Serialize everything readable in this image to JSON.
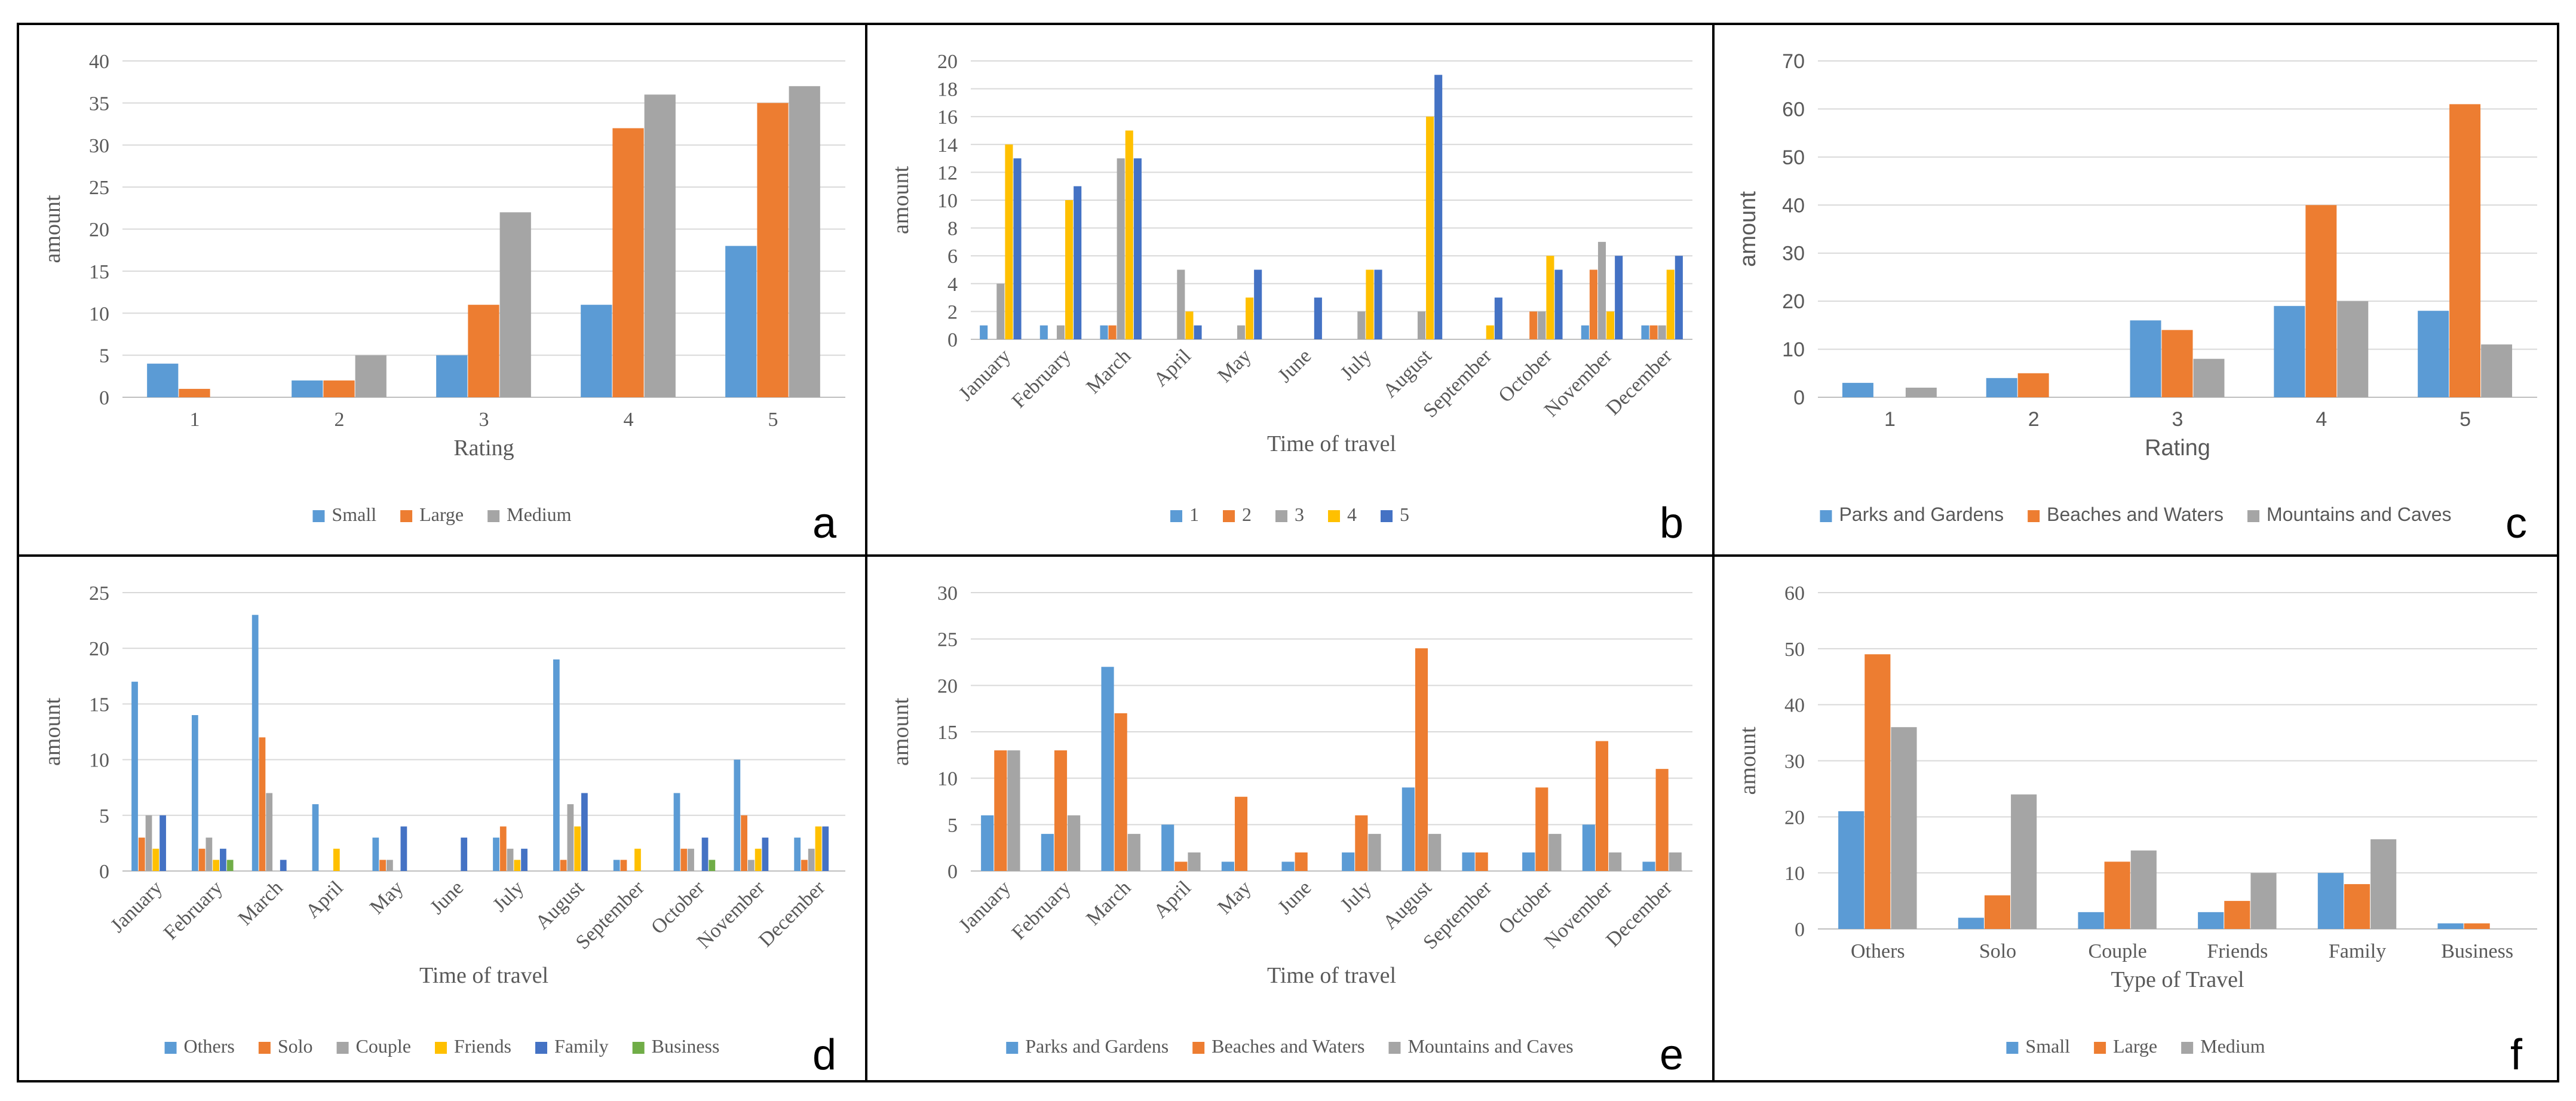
{
  "colors": {
    "blue": "#5B9BD5",
    "orange": "#ED7D31",
    "gray": "#A5A5A5",
    "yellow": "#FFC000",
    "darkblue": "#4472C4",
    "green": "#70AD47",
    "gridline": "#D9D9D9",
    "border": "#000000",
    "text": "#595959"
  },
  "chart_data": [
    {
      "panel": "a",
      "type": "bar",
      "title": "",
      "xlabel": "Rating",
      "ylabel": "amount",
      "ylim": [
        0,
        40
      ],
      "ytick_step": 5,
      "grid": true,
      "legend": "bottom",
      "legend_font": "serif",
      "categories": [
        "1",
        "2",
        "3",
        "4",
        "5"
      ],
      "rotate_labels": false,
      "series": [
        {
          "name": "Small",
          "color": "blue",
          "values": [
            4,
            2,
            5,
            11,
            18
          ]
        },
        {
          "name": "Large",
          "color": "orange",
          "values": [
            1,
            2,
            11,
            32,
            35
          ]
        },
        {
          "name": "Medium",
          "color": "gray",
          "values": [
            0,
            5,
            22,
            36,
            37
          ]
        }
      ]
    },
    {
      "panel": "b",
      "type": "bar",
      "title": "",
      "xlabel": "Time of travel",
      "ylabel": "amount",
      "ylim": [
        0,
        20
      ],
      "ytick_step": 2,
      "grid": true,
      "legend": "bottom",
      "legend_font": "serif",
      "categories": [
        "January",
        "February",
        "March",
        "April",
        "May",
        "June",
        "July",
        "August",
        "September",
        "October",
        "November",
        "December"
      ],
      "rotate_labels": true,
      "series": [
        {
          "name": "1",
          "color": "blue",
          "values": [
            1,
            1,
            1,
            0,
            0,
            0,
            0,
            0,
            0,
            0,
            1,
            1
          ]
        },
        {
          "name": "2",
          "color": "orange",
          "values": [
            0,
            0,
            1,
            0,
            0,
            0,
            0,
            0,
            0,
            2,
            5,
            1
          ]
        },
        {
          "name": "3",
          "color": "gray",
          "values": [
            4,
            1,
            13,
            5,
            1,
            0,
            2,
            2,
            0,
            2,
            7,
            1
          ]
        },
        {
          "name": "4",
          "color": "yellow",
          "values": [
            14,
            10,
            15,
            2,
            3,
            0,
            5,
            16,
            1,
            6,
            2,
            5
          ]
        },
        {
          "name": "5",
          "color": "darkblue",
          "values": [
            13,
            11,
            13,
            1,
            5,
            3,
            5,
            19,
            3,
            5,
            6,
            6
          ]
        }
      ]
    },
    {
      "panel": "c",
      "type": "bar",
      "title": "",
      "xlabel": "Rating",
      "ylabel": "amount",
      "ylim": [
        0,
        70
      ],
      "ytick_step": 10,
      "grid": true,
      "legend": "bottom",
      "legend_font": "sans",
      "categories": [
        "1",
        "2",
        "3",
        "4",
        "5"
      ],
      "rotate_labels": false,
      "series": [
        {
          "name": "Parks and Gardens",
          "color": "blue",
          "values": [
            3,
            4,
            16,
            19,
            18
          ]
        },
        {
          "name": "Beaches and Waters",
          "color": "orange",
          "values": [
            0,
            5,
            14,
            40,
            61
          ]
        },
        {
          "name": "Mountains and Caves",
          "color": "gray",
          "values": [
            2,
            0,
            8,
            20,
            11
          ]
        }
      ]
    },
    {
      "panel": "d",
      "type": "bar",
      "title": "",
      "xlabel": "Time of travel",
      "ylabel": "amount",
      "ylim": [
        0,
        25
      ],
      "ytick_step": 5,
      "grid": true,
      "legend": "bottom",
      "legend_font": "serif",
      "categories": [
        "January",
        "February",
        "March",
        "April",
        "May",
        "June",
        "July",
        "August",
        "September",
        "October",
        "November",
        "December"
      ],
      "rotate_labels": true,
      "series": [
        {
          "name": "Others",
          "color": "blue",
          "values": [
            17,
            14,
            23,
            6,
            3,
            0,
            3,
            19,
            1,
            7,
            10,
            3
          ]
        },
        {
          "name": "Solo",
          "color": "orange",
          "values": [
            3,
            2,
            12,
            0,
            1,
            0,
            4,
            1,
            1,
            2,
            5,
            1
          ]
        },
        {
          "name": "Couple",
          "color": "gray",
          "values": [
            5,
            3,
            7,
            0,
            1,
            0,
            2,
            6,
            0,
            2,
            1,
            2
          ]
        },
        {
          "name": "Friends",
          "color": "yellow",
          "values": [
            2,
            1,
            0,
            2,
            0,
            0,
            1,
            4,
            2,
            0,
            2,
            4
          ]
        },
        {
          "name": "Family",
          "color": "darkblue",
          "values": [
            5,
            2,
            1,
            0,
            4,
            3,
            2,
            7,
            0,
            3,
            3,
            4
          ]
        },
        {
          "name": "Business",
          "color": "green",
          "values": [
            0,
            1,
            0,
            0,
            0,
            0,
            0,
            0,
            0,
            1,
            0,
            0
          ]
        }
      ]
    },
    {
      "panel": "e",
      "type": "bar",
      "title": "",
      "xlabel": "Time of travel",
      "ylabel": "amount",
      "ylim": [
        0,
        30
      ],
      "ytick_step": 5,
      "grid": true,
      "legend": "bottom",
      "legend_font": "serif",
      "categories": [
        "January",
        "February",
        "March",
        "April",
        "May",
        "June",
        "July",
        "August",
        "September",
        "October",
        "November",
        "December"
      ],
      "rotate_labels": true,
      "series": [
        {
          "name": "Parks and Gardens",
          "color": "blue",
          "values": [
            6,
            4,
            22,
            5,
            1,
            1,
            2,
            9,
            2,
            2,
            5,
            1
          ]
        },
        {
          "name": "Beaches and Waters",
          "color": "orange",
          "values": [
            13,
            13,
            17,
            1,
            8,
            2,
            6,
            24,
            2,
            9,
            14,
            11
          ]
        },
        {
          "name": "Mountains and Caves",
          "color": "gray",
          "values": [
            13,
            6,
            4,
            2,
            0,
            0,
            4,
            4,
            0,
            4,
            2,
            2
          ]
        }
      ]
    },
    {
      "panel": "f",
      "type": "bar",
      "title": "",
      "xlabel": "Type of Travel",
      "ylabel": "amount",
      "ylim": [
        0,
        60
      ],
      "ytick_step": 10,
      "grid": true,
      "legend": "bottom",
      "legend_font": "serif",
      "categories": [
        "Others",
        "Solo",
        "Couple",
        "Friends",
        "Family",
        "Business"
      ],
      "rotate_labels": false,
      "series": [
        {
          "name": "Small",
          "color": "blue",
          "values": [
            21,
            2,
            3,
            3,
            10,
            1
          ]
        },
        {
          "name": "Large",
          "color": "orange",
          "values": [
            49,
            6,
            12,
            5,
            8,
            1
          ]
        },
        {
          "name": "Medium",
          "color": "gray",
          "values": [
            36,
            24,
            14,
            10,
            16,
            0
          ]
        }
      ]
    }
  ]
}
